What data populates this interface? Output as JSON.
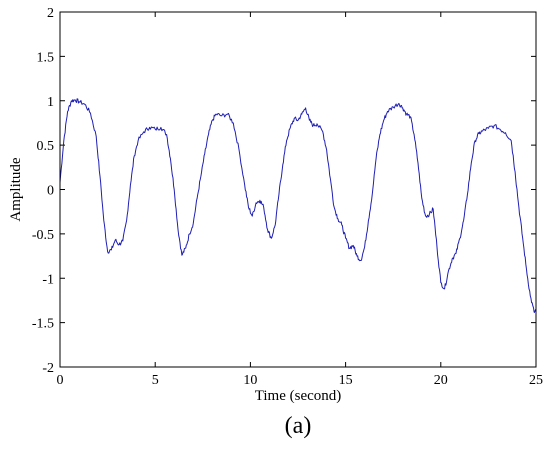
{
  "panel_label": "(a)",
  "chart_data": {
    "type": "line",
    "title": "",
    "xlabel": "Time (second)",
    "ylabel": "Amplitude",
    "xlim": [
      0,
      25
    ],
    "ylim": [
      -2,
      2
    ],
    "xticks": [
      0,
      5,
      10,
      15,
      20,
      25
    ],
    "yticks": [
      -2,
      -1.5,
      -1,
      -0.5,
      0,
      0.5,
      1,
      1.5,
      2
    ],
    "ytick_labels": [
      "-2",
      "-1.5",
      "-1",
      "-0.5",
      "0",
      "0.5",
      "1",
      "1.5",
      "2"
    ],
    "grid": false,
    "line_color": "#1f1fb4",
    "series": [
      {
        "x": [
          0,
          0.2,
          0.4,
          0.6,
          0.8,
          1.0,
          1.3,
          1.6,
          1.9,
          2.1,
          2.3,
          2.5,
          2.7,
          2.9,
          3.1,
          3.3,
          3.5,
          3.7,
          3.9,
          4.1,
          4.4,
          4.7,
          5.0,
          5.3,
          5.6,
          5.8,
          6.0,
          6.2,
          6.4,
          6.6,
          6.8,
          7.0,
          7.2,
          7.4,
          7.6,
          7.8,
          8.0,
          8.2,
          8.5,
          8.8,
          9.1,
          9.4,
          9.7,
          9.9,
          10.1,
          10.3,
          10.5,
          10.7,
          10.9,
          11.1,
          11.3,
          11.5,
          11.7,
          11.9,
          12.1,
          12.3,
          12.5,
          12.7,
          12.9,
          13.1,
          13.3,
          13.5,
          13.8,
          14.0,
          14.2,
          14.4,
          14.6,
          14.8,
          15.0,
          15.2,
          15.4,
          15.6,
          15.8,
          16.0,
          16.2,
          16.4,
          16.6,
          16.8,
          17.0,
          17.2,
          17.5,
          17.8,
          18.0,
          18.2,
          18.4,
          18.6,
          18.8,
          19.0,
          19.2,
          19.4,
          19.6,
          19.8,
          20.0,
          20.2,
          20.4,
          20.6,
          20.8,
          21.0,
          21.2,
          21.4,
          21.6,
          21.8,
          22.0,
          22.2,
          22.5,
          22.8,
          23.1,
          23.4,
          23.7,
          23.9,
          24.1,
          24.3,
          24.5,
          24.7,
          24.9,
          25.0
        ],
        "y": [
          0.08,
          0.55,
          0.88,
          1.0,
          1.01,
          0.99,
          0.96,
          0.86,
          0.6,
          0.15,
          -0.35,
          -0.7,
          -0.68,
          -0.57,
          -0.62,
          -0.58,
          -0.35,
          0.05,
          0.38,
          0.55,
          0.65,
          0.7,
          0.68,
          0.7,
          0.62,
          0.35,
          0.0,
          -0.45,
          -0.74,
          -0.66,
          -0.5,
          -0.38,
          -0.1,
          0.15,
          0.4,
          0.62,
          0.78,
          0.85,
          0.83,
          0.85,
          0.75,
          0.45,
          0.05,
          -0.2,
          -0.3,
          -0.15,
          -0.12,
          -0.2,
          -0.45,
          -0.55,
          -0.4,
          -0.05,
          0.28,
          0.55,
          0.7,
          0.8,
          0.78,
          0.85,
          0.92,
          0.78,
          0.72,
          0.74,
          0.65,
          0.45,
          0.12,
          -0.2,
          -0.33,
          -0.4,
          -0.55,
          -0.66,
          -0.63,
          -0.75,
          -0.8,
          -0.65,
          -0.35,
          -0.05,
          0.35,
          0.62,
          0.78,
          0.88,
          0.93,
          0.97,
          0.92,
          0.85,
          0.82,
          0.62,
          0.3,
          -0.1,
          -0.3,
          -0.28,
          -0.22,
          -0.65,
          -1.05,
          -1.12,
          -0.92,
          -0.78,
          -0.72,
          -0.55,
          -0.35,
          -0.05,
          0.3,
          0.55,
          0.63,
          0.66,
          0.69,
          0.72,
          0.68,
          0.64,
          0.55,
          0.2,
          -0.2,
          -0.55,
          -0.9,
          -1.2,
          -1.38,
          -1.37
        ]
      }
    ]
  }
}
